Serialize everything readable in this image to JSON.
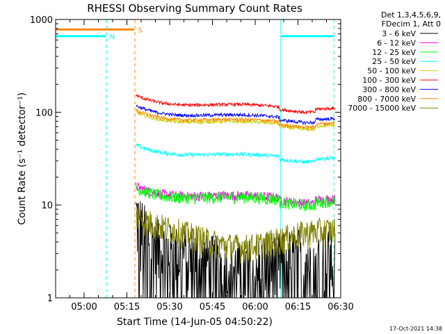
{
  "chart_data": {
    "type": "line",
    "title": "RHESSI Observing Summary Count Rates",
    "xlabel": "Start Time (14-Jun-05 04:50:22)",
    "ylabel": "Count Rate (s⁻¹ detector⁻¹)",
    "ylog": true,
    "xlim_minutes_after_0450": [
      0,
      100
    ],
    "ylim": [
      1,
      1000
    ],
    "x_ticks": [
      {
        "label": "05:00",
        "min": 10
      },
      {
        "label": "05:15",
        "min": 25
      },
      {
        "label": "05:30",
        "min": 40
      },
      {
        "label": "05:45",
        "min": 55
      },
      {
        "label": "06:00",
        "min": 70
      },
      {
        "label": "06:15",
        "min": 85
      },
      {
        "label": "06:30",
        "min": 100
      }
    ],
    "y_ticks": [
      1,
      10,
      100,
      1000
    ],
    "y_tick_labels": [
      "1",
      "10",
      "100",
      "1000"
    ],
    "legend_header": [
      "Det 1,3,4,5,6,9,",
      "FDecim 1, Att 0"
    ],
    "legend_placement": "right",
    "data_start_min": 28.2,
    "data_end_min": 98.0,
    "series": [
      {
        "name": "3 - 6 keV",
        "color": "#000000",
        "base": 2.6,
        "noise": 0.9
      },
      {
        "name": "6 - 12 keV",
        "color": "#ff00ff",
        "base": 11.5,
        "noise": 0.12
      },
      {
        "name": "12 - 25 keV",
        "color": "#00ff00",
        "base": 11.0,
        "noise": 0.15
      },
      {
        "name": "25 - 50 keV",
        "color": "#00ffff",
        "base": 32,
        "noise": 0.05
      },
      {
        "name": "50 - 100 keV",
        "color": "#cccc00",
        "base": 72,
        "noise": 0.04
      },
      {
        "name": "100 - 300 keV",
        "color": "#ff0000",
        "base": 110,
        "noise": 0.04
      },
      {
        "name": "300 - 800 keV",
        "color": "#0000ff",
        "base": 85,
        "noise": 0.04
      },
      {
        "name": "800 - 7000 keV",
        "color": "#ff8800",
        "base": 76,
        "noise": 0.04
      },
      {
        "name": "7000 - 15000 keV",
        "color": "#808000",
        "base": 4.5,
        "noise": 0.35
      }
    ],
    "annotations": [
      {
        "label": "S",
        "color": "#ff8800",
        "x_start_min": 0,
        "x_end_min": 27.5,
        "y_value": 780
      },
      {
        "label": "N",
        "color": "#00ffff",
        "x_start_min": 0,
        "x_end_min": 17.5,
        "y_value": 660
      },
      {
        "label": "",
        "color": "#00ffff",
        "x_start_min": 79,
        "x_end_min": 97.5,
        "y_value": 660
      }
    ],
    "vertical_markers": [
      {
        "min": 0,
        "color": "#00ffff",
        "style": "solid"
      },
      {
        "min": 17.8,
        "color": "#00ffff",
        "style": "dashed"
      },
      {
        "min": 27.8,
        "color": "#ff8800",
        "style": "dashed"
      },
      {
        "min": 79,
        "color": "#00ffff",
        "style": "solid"
      },
      {
        "min": 97.6,
        "color": "#00ffff",
        "style": "dashed"
      }
    ]
  },
  "footer_timestamp": "17-Oct-2021 14:38"
}
